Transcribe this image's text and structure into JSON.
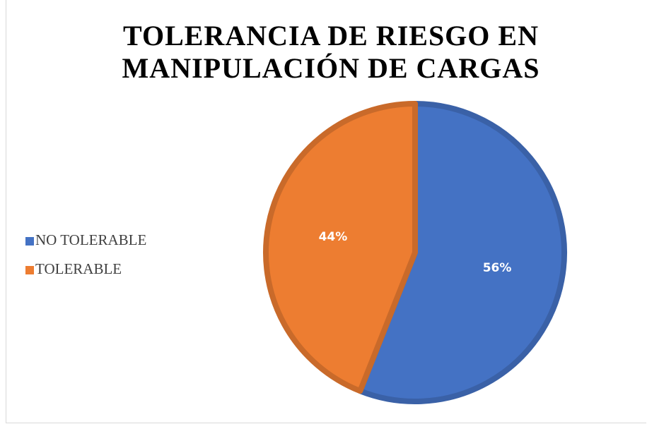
{
  "chart_data": {
    "type": "pie",
    "title": "TOLERANCIA DE RIESGO EN MANIPULACIÓN DE CARGAS",
    "categories": [
      "NO TOLERABLE",
      "TOLERABLE"
    ],
    "values": [
      56,
      44
    ],
    "value_labels": [
      "56%",
      "44%"
    ],
    "colors": [
      "#4472c4",
      "#ed7d31"
    ],
    "legend": "left"
  }
}
